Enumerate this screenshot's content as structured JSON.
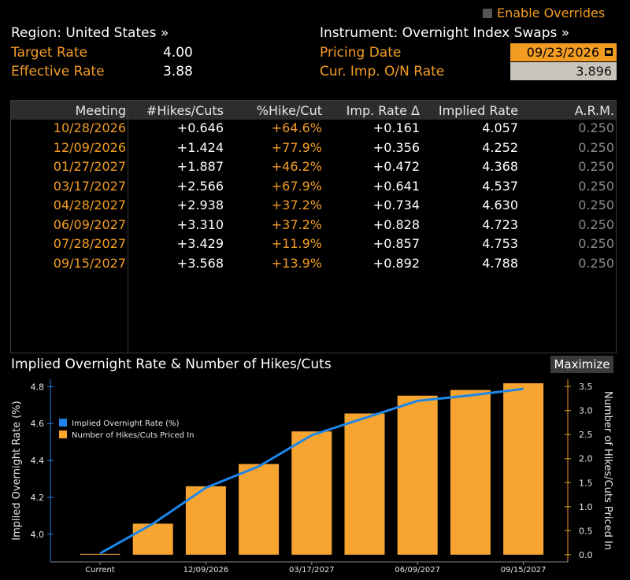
{
  "header": {
    "enable_overrides": "Enable Overrides",
    "region": "Region: United States »",
    "instrument": "Instrument: Overnight Index Swaps »",
    "target_rate_label": "Target Rate",
    "target_rate_value": "4.00",
    "effective_rate_label": "Effective Rate",
    "effective_rate_value": "3.88",
    "pricing_date_label": "Pricing Date",
    "pricing_date_value": "09/23/2026",
    "cur_imp_label": "Cur. Imp. O/N Rate",
    "cur_imp_value": "3.896"
  },
  "table": {
    "headers": [
      "Meeting",
      "#Hikes/Cuts",
      "%Hike/Cut",
      "Imp. Rate Δ",
      "Implied Rate",
      "A.R.M."
    ],
    "rows": [
      [
        "10/28/2026",
        "+0.646",
        "+64.6%",
        "+0.161",
        "4.057",
        "0.250"
      ],
      [
        "12/09/2026",
        "+1.424",
        "+77.9%",
        "+0.356",
        "4.252",
        "0.250"
      ],
      [
        "01/27/2027",
        "+1.887",
        "+46.2%",
        "+0.472",
        "4.368",
        "0.250"
      ],
      [
        "03/17/2027",
        "+2.566",
        "+67.9%",
        "+0.641",
        "4.537",
        "0.250"
      ],
      [
        "04/28/2027",
        "+2.938",
        "+37.2%",
        "+0.734",
        "4.630",
        "0.250"
      ],
      [
        "06/09/2027",
        "+3.310",
        "+37.2%",
        "+0.828",
        "4.723",
        "0.250"
      ],
      [
        "07/28/2027",
        "+3.429",
        "+11.9%",
        "+0.857",
        "4.753",
        "0.250"
      ],
      [
        "09/15/2027",
        "+3.568",
        "+13.9%",
        "+0.892",
        "4.788",
        "0.250"
      ]
    ]
  },
  "chart_panel": {
    "title": "Implied Overnight Rate & Number of Hikes/Cuts",
    "maximize_label": "Maximize"
  },
  "chart_data": {
    "type": "bar",
    "categories": [
      "Current",
      "10/28/2026",
      "12/09/2026",
      "01/27/2027",
      "03/17/2027",
      "04/28/2027",
      "06/09/2027",
      "07/28/2027",
      "09/15/2027"
    ],
    "x_tick_labels": [
      "Current",
      "12/09/2026",
      "03/17/2027",
      "06/09/2027",
      "09/15/2027"
    ],
    "series": [
      {
        "name": "Implied Overnight Rate (%)",
        "type": "line",
        "axis": "left",
        "color": "#1e86e8",
        "values": [
          3.896,
          4.057,
          4.252,
          4.368,
          4.537,
          4.63,
          4.723,
          4.753,
          4.788
        ]
      },
      {
        "name": "Number of Hikes/Cuts Priced In",
        "type": "bar",
        "axis": "right",
        "color": "#f7a530",
        "values": [
          0,
          0.646,
          1.424,
          1.887,
          2.566,
          2.938,
          3.31,
          3.429,
          3.568
        ]
      }
    ],
    "ylabel": "Implied Overnight Rate (%)",
    "y2label": "Number of Hikes/Cuts Priced In",
    "ylim": [
      3.85,
      4.84
    ],
    "y_ticks": [
      "4.0",
      "4.2",
      "4.4",
      "4.6",
      "4.8"
    ],
    "y2lim": [
      -0.15,
      3.65
    ],
    "y2_ticks": [
      "0.0",
      "0.5",
      "1.0",
      "1.5",
      "2.0",
      "2.5",
      "3.0",
      "3.5"
    ],
    "legend_position": "top-left",
    "grid": false
  }
}
